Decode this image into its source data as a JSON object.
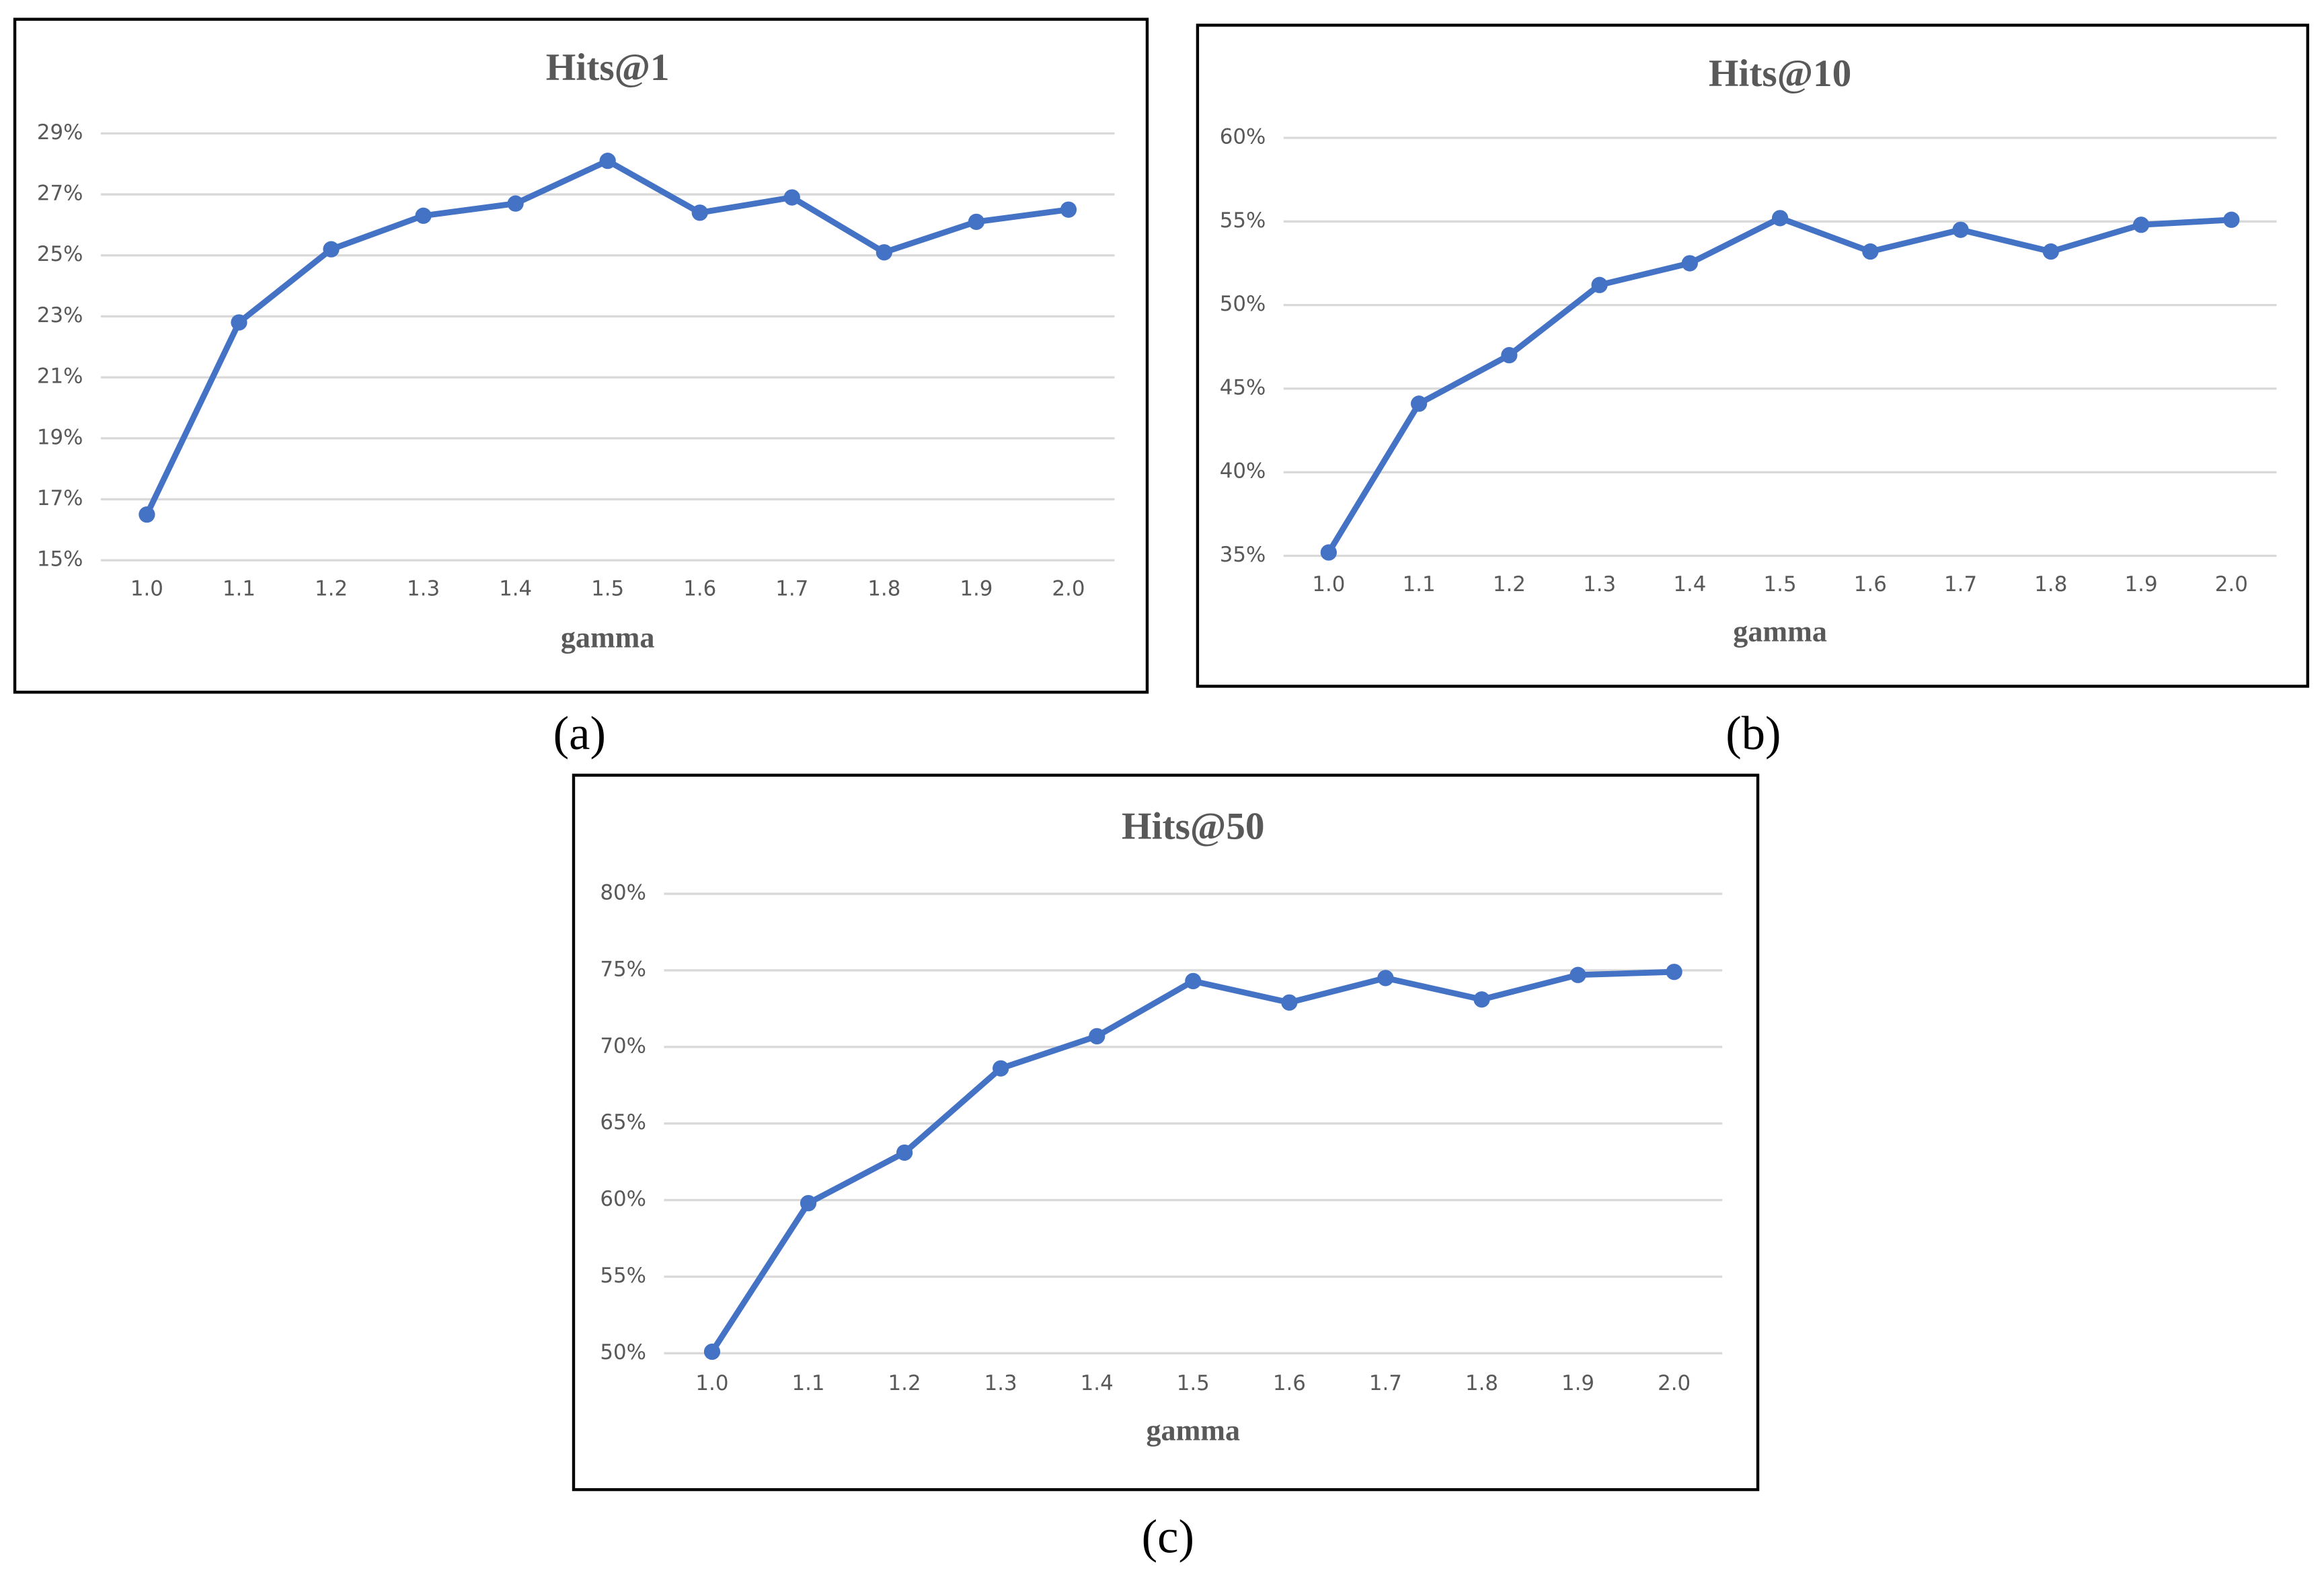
{
  "chart_data": [
    {
      "type": "line",
      "title": "Hits@1",
      "caption": "(a)",
      "xlabel": "gamma",
      "categories": [
        "1.0",
        "1.1",
        "1.2",
        "1.3",
        "1.4",
        "1.5",
        "1.6",
        "1.7",
        "1.8",
        "1.9",
        "2.0"
      ],
      "series": [
        {
          "name": "Hits@1",
          "color": "#4472c4",
          "values": [
            16.5,
            22.8,
            25.2,
            26.3,
            26.7,
            28.1,
            26.4,
            26.9,
            25.1,
            26.1,
            26.5
          ]
        }
      ],
      "ylim": [
        15,
        29
      ],
      "yticks": [
        {
          "value": 15,
          "label": "15%"
        },
        {
          "value": 17,
          "label": "17%"
        },
        {
          "value": 19,
          "label": "19%"
        },
        {
          "value": 21,
          "label": "21%"
        },
        {
          "value": 23,
          "label": "23%"
        },
        {
          "value": 25,
          "label": "25%"
        },
        {
          "value": 27,
          "label": "27%"
        },
        {
          "value": 29,
          "label": "29%"
        }
      ],
      "grid": true
    },
    {
      "type": "line",
      "title": "Hits@10",
      "caption": "(b)",
      "xlabel": "gamma",
      "categories": [
        "1.0",
        "1.1",
        "1.2",
        "1.3",
        "1.4",
        "1.5",
        "1.6",
        "1.7",
        "1.8",
        "1.9",
        "2.0"
      ],
      "series": [
        {
          "name": "Hits@10",
          "color": "#4472c4",
          "values": [
            35.2,
            44.1,
            47.0,
            51.2,
            52.5,
            55.2,
            53.2,
            54.5,
            53.2,
            54.8,
            55.1
          ]
        }
      ],
      "ylim": [
        35,
        60
      ],
      "yticks": [
        {
          "value": 35,
          "label": "35%"
        },
        {
          "value": 40,
          "label": "40%"
        },
        {
          "value": 45,
          "label": "45%"
        },
        {
          "value": 50,
          "label": "50%"
        },
        {
          "value": 55,
          "label": "55%"
        },
        {
          "value": 60,
          "label": "60%"
        }
      ],
      "grid": true
    },
    {
      "type": "line",
      "title": "Hits@50",
      "caption": "(c)",
      "xlabel": "gamma",
      "categories": [
        "1.0",
        "1.1",
        "1.2",
        "1.3",
        "1.4",
        "1.5",
        "1.6",
        "1.7",
        "1.8",
        "1.9",
        "2.0"
      ],
      "series": [
        {
          "name": "Hits@50",
          "color": "#4472c4",
          "values": [
            50.1,
            59.8,
            63.1,
            68.6,
            70.7,
            74.3,
            72.9,
            74.5,
            73.1,
            74.7,
            74.9
          ]
        }
      ],
      "ylim": [
        50,
        80
      ],
      "yticks": [
        {
          "value": 50,
          "label": "50%"
        },
        {
          "value": 55,
          "label": "55%"
        },
        {
          "value": 60,
          "label": "60%"
        },
        {
          "value": 65,
          "label": "65%"
        },
        {
          "value": 70,
          "label": "70%"
        },
        {
          "value": 75,
          "label": "75%"
        },
        {
          "value": 80,
          "label": "80%"
        }
      ],
      "grid": true
    }
  ]
}
